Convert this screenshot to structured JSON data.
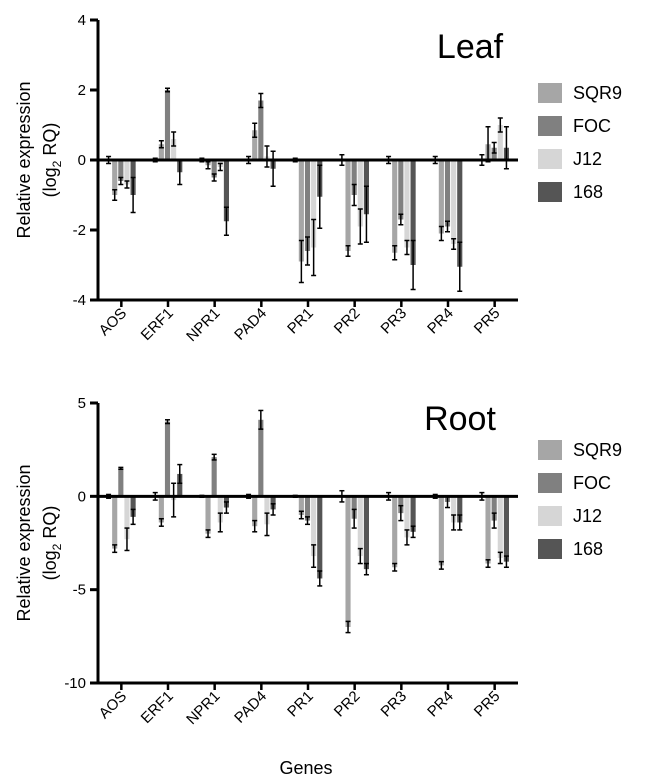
{
  "xlabel": "Genes",
  "colors": {
    "SQR9": "#a6a6a6",
    "FOC": "#808080",
    "J12": "#d6d6d6",
    "168": "#555555",
    "axis": "#000000"
  },
  "chart_data": [
    {
      "type": "bar",
      "title": "Leaf",
      "ylabel_line1": "Relative expression",
      "ylabel_line2_prefix": "(log",
      "ylabel_line2_sub": "2",
      "ylabel_line2_suffix": " RQ)",
      "ylim": [
        -4,
        4
      ],
      "yticks": [
        -4,
        -2,
        0,
        2,
        4
      ],
      "ytick_labels": [
        "-4",
        "-2",
        "0",
        "2",
        "4"
      ],
      "categories": [
        "AOS",
        "ERF1",
        "NPR1",
        "PAD4",
        "PR1",
        "PR2",
        "PR3",
        "PR4",
        "PR5"
      ],
      "legend_position": "right",
      "series": [
        {
          "name": "SQR9",
          "values": [
            -1.0,
            0.45,
            -0.15,
            0.85,
            -2.9,
            -2.6,
            -2.65,
            -2.1,
            0.45
          ],
          "errors": [
            0.15,
            0.1,
            0.1,
            0.2,
            0.6,
            0.15,
            0.2,
            0.2,
            0.5
          ]
        },
        {
          "name": "FOC",
          "values": [
            -0.6,
            2.0,
            -0.5,
            1.7,
            -2.6,
            -1.0,
            -1.7,
            -1.9,
            0.35
          ],
          "errors": [
            0.1,
            0.05,
            0.1,
            0.2,
            0.4,
            0.3,
            0.15,
            0.15,
            0.15
          ]
        },
        {
          "name": "J12",
          "values": [
            -0.7,
            0.6,
            -0.2,
            0.1,
            -2.5,
            -1.9,
            -2.5,
            -2.4,
            1.0
          ],
          "errors": [
            0.1,
            0.2,
            0.1,
            0.3,
            0.8,
            0.5,
            0.2,
            0.15,
            0.2
          ]
        },
        {
          "name": "168",
          "values": [
            -1.0,
            -0.35,
            -1.75,
            -0.25,
            -1.05,
            -1.55,
            -3.0,
            -3.05,
            0.35
          ],
          "errors": [
            0.5,
            0.35,
            0.4,
            0.5,
            0.9,
            0.8,
            0.7,
            0.7,
            0.6
          ]
        }
      ],
      "baseline_errors": [
        0.1,
        0.05,
        0.05,
        0.1,
        0.05,
        0.15,
        0.1,
        0.1,
        0.15
      ]
    },
    {
      "type": "bar",
      "title": "Root",
      "ylabel_line1": "Relative expression",
      "ylabel_line2_prefix": "(log",
      "ylabel_line2_sub": "2",
      "ylabel_line2_suffix": " RQ)",
      "ylim": [
        -10,
        5
      ],
      "yticks": [
        -10,
        -5,
        0,
        5
      ],
      "ytick_labels": [
        "-10",
        "-5",
        "0",
        "5"
      ],
      "categories": [
        "AOS",
        "ERF1",
        "NPR1",
        "PAD4",
        "PR1",
        "PR2",
        "PR3",
        "PR4",
        "PR5"
      ],
      "legend_position": "right",
      "series": [
        {
          "name": "SQR9",
          "values": [
            -2.8,
            -1.4,
            -2.0,
            -1.6,
            -1.0,
            -7.0,
            -3.8,
            -3.7,
            -3.6
          ],
          "errors": [
            0.2,
            0.2,
            0.2,
            0.3,
            0.2,
            0.3,
            0.2,
            0.2,
            0.2
          ]
        },
        {
          "name": "FOC",
          "values": [
            1.5,
            4.0,
            2.1,
            4.1,
            -1.3,
            -1.2,
            -0.9,
            -0.3,
            -1.3
          ],
          "errors": [
            0.05,
            0.1,
            0.15,
            0.5,
            0.2,
            0.5,
            0.4,
            0.3,
            0.4
          ]
        },
        {
          "name": "J12",
          "values": [
            -2.3,
            -0.2,
            -1.4,
            -1.5,
            -3.2,
            -3.2,
            -2.2,
            -1.4,
            -3.3
          ],
          "errors": [
            0.6,
            0.9,
            0.5,
            0.6,
            0.6,
            0.4,
            0.4,
            0.4,
            0.3
          ]
        },
        {
          "name": "168",
          "values": [
            -1.1,
            1.2,
            -0.6,
            -0.7,
            -4.4,
            -3.9,
            -1.9,
            -1.4,
            -3.5
          ],
          "errors": [
            0.4,
            0.5,
            0.3,
            0.3,
            0.4,
            0.3,
            0.3,
            0.4,
            0.3
          ]
        }
      ],
      "baseline_errors": [
        0.1,
        0.2,
        0.05,
        0.1,
        0.05,
        0.3,
        0.2,
        0.1,
        0.2
      ]
    }
  ]
}
